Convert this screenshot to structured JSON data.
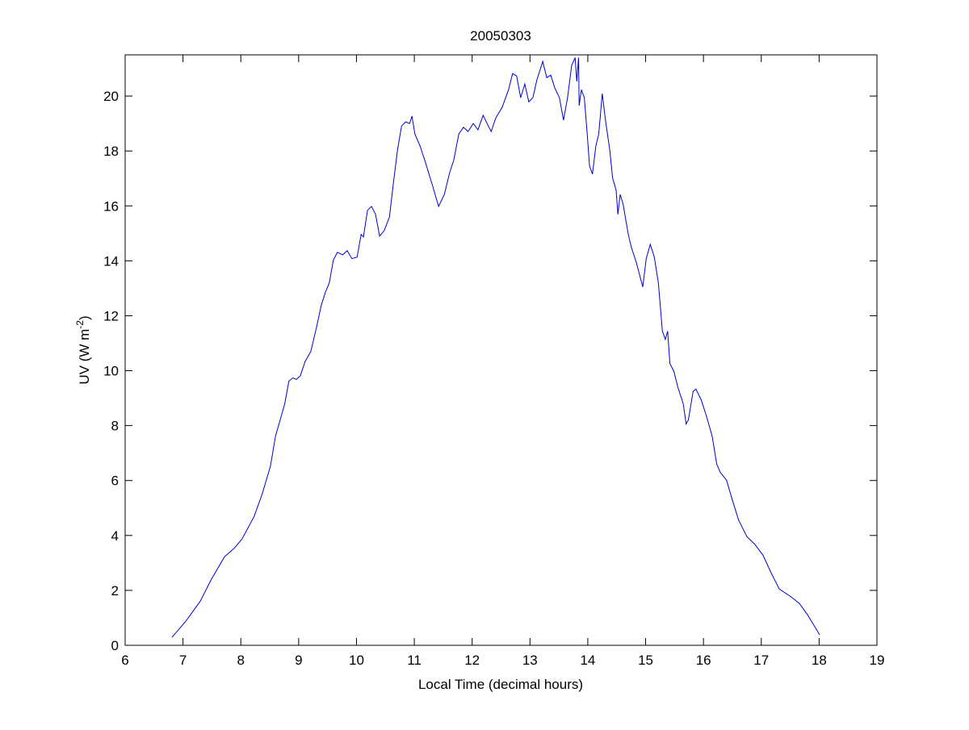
{
  "chart_data": {
    "type": "line",
    "title": "20050303",
    "xlabel": "Local Time (decimal hours)",
    "ylabel_main": "UV (W m",
    "ylabel_sup": "-2",
    "ylabel_close": ")",
    "xlim": [
      6,
      19
    ],
    "ylim": [
      0,
      21.5
    ],
    "xticks": [
      6,
      7,
      8,
      9,
      10,
      11,
      12,
      13,
      14,
      15,
      16,
      17,
      18,
      19
    ],
    "yticks": [
      0,
      2,
      4,
      6,
      8,
      10,
      12,
      14,
      16,
      18,
      20
    ],
    "grid": false,
    "line_color": "#0000cc",
    "series": [
      {
        "x": [
          6.81,
          7.05,
          7.3,
          7.49,
          7.72,
          7.88,
          8.02,
          8.23,
          8.37,
          8.51,
          8.6,
          8.69,
          8.76,
          8.83,
          8.9,
          8.96,
          9.03,
          9.11,
          9.21,
          9.31,
          9.39,
          9.46,
          9.53,
          9.6,
          9.67,
          9.76,
          9.84,
          9.92,
          10.01,
          10.08,
          10.12,
          10.19,
          10.26,
          10.33,
          10.4,
          10.48,
          10.57,
          10.64,
          10.71,
          10.78,
          10.85,
          10.92,
          10.96,
          11.01,
          11.1,
          11.19,
          11.31,
          11.42,
          11.52,
          11.61,
          11.68,
          11.77,
          11.85,
          11.93,
          12.02,
          12.1,
          12.19,
          12.28,
          12.33,
          12.41,
          12.52,
          12.63,
          12.7,
          12.77,
          12.84,
          12.91,
          12.98,
          13.05,
          13.12,
          13.22,
          13.29,
          13.36,
          13.43,
          13.51,
          13.58,
          13.65,
          13.72,
          13.78,
          13.81,
          13.84,
          13.85,
          13.89,
          13.94,
          13.99,
          14.03,
          14.08,
          14.14,
          14.19,
          14.25,
          14.31,
          14.38,
          14.43,
          14.49,
          14.52,
          14.56,
          14.61,
          14.7,
          14.75,
          14.84,
          14.95,
          15.01,
          15.08,
          15.15,
          15.22,
          15.29,
          15.34,
          15.38,
          15.42,
          15.49,
          15.56,
          15.65,
          15.7,
          15.74,
          15.82,
          15.87,
          15.96,
          16.05,
          16.15,
          16.23,
          16.29,
          16.4,
          16.5,
          16.61,
          16.75,
          16.89,
          17.03,
          17.17,
          17.31,
          17.52,
          17.66,
          17.8,
          17.91,
          18.01
        ],
        "y": [
          0.29,
          0.88,
          1.61,
          2.4,
          3.23,
          3.52,
          3.87,
          4.69,
          5.51,
          6.51,
          7.62,
          8.27,
          8.8,
          9.62,
          9.74,
          9.68,
          9.82,
          10.32,
          10.7,
          11.58,
          12.38,
          12.84,
          13.2,
          14.02,
          14.31,
          14.22,
          14.37,
          14.08,
          14.13,
          14.96,
          14.87,
          15.84,
          15.98,
          15.69,
          14.9,
          15.1,
          15.6,
          16.86,
          18.04,
          18.91,
          19.06,
          19.0,
          19.27,
          18.62,
          18.18,
          17.6,
          16.77,
          15.98,
          16.42,
          17.21,
          17.65,
          18.62,
          18.86,
          18.71,
          19.0,
          18.77,
          19.3,
          18.91,
          18.71,
          19.21,
          19.59,
          20.23,
          20.82,
          20.73,
          19.94,
          20.44,
          19.79,
          19.94,
          20.59,
          21.26,
          20.67,
          20.76,
          20.29,
          19.94,
          19.12,
          19.94,
          21.11,
          21.4,
          20.53,
          21.4,
          19.65,
          20.23,
          19.94,
          18.62,
          17.45,
          17.16,
          18.18,
          18.62,
          20.09,
          19.06,
          18.04,
          17.01,
          16.57,
          15.69,
          16.42,
          16.07,
          14.96,
          14.52,
          13.93,
          13.05,
          14.08,
          14.6,
          14.13,
          13.2,
          11.44,
          11.14,
          11.44,
          10.26,
          9.97,
          9.38,
          8.8,
          8.06,
          8.21,
          9.24,
          9.33,
          8.94,
          8.36,
          7.62,
          6.6,
          6.3,
          6.01,
          5.28,
          4.55,
          3.96,
          3.67,
          3.28,
          2.64,
          2.05,
          1.76,
          1.52,
          1.11,
          0.73,
          0.38
        ]
      }
    ]
  }
}
